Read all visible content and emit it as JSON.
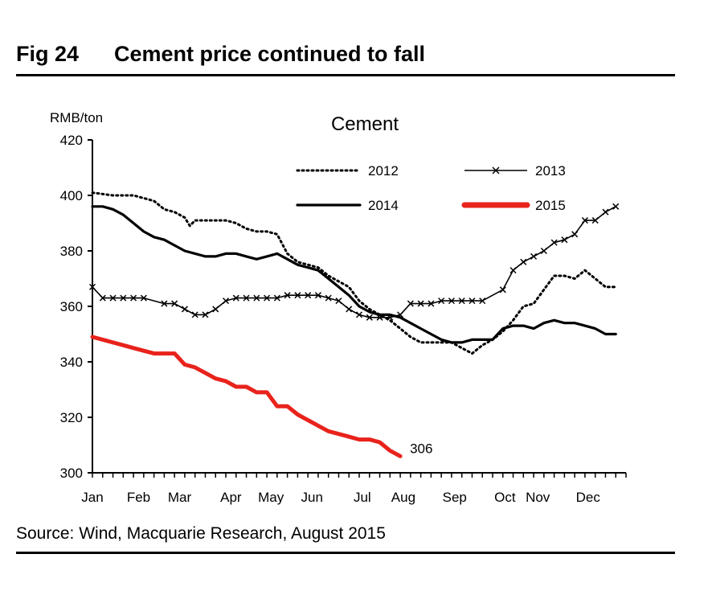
{
  "figure": {
    "number": "Fig 24",
    "title": "Cement price continued to fall",
    "source": "Source: Wind, Macquarie Research, August 2015"
  },
  "chart_data": {
    "type": "line",
    "title": "Cement",
    "ylabel": "RMB/ton",
    "xlabel": "",
    "ylim": [
      300,
      420
    ],
    "yticks": [
      300,
      320,
      340,
      360,
      380,
      400,
      420
    ],
    "x_unit": "week",
    "xlim": [
      0,
      52
    ],
    "x_ticks": [
      {
        "label": "Jan",
        "x": 0
      },
      {
        "label": "Feb",
        "x": 4.5
      },
      {
        "label": "Mar",
        "x": 8.5
      },
      {
        "label": "Apr",
        "x": 13.5
      },
      {
        "label": "May",
        "x": 17.4
      },
      {
        "label": "Jun",
        "x": 21.4
      },
      {
        "label": "Jul",
        "x": 26.3
      },
      {
        "label": "Aug",
        "x": 30.3
      },
      {
        "label": "Sep",
        "x": 35.3
      },
      {
        "label": "Oct",
        "x": 40.2
      },
      {
        "label": "Nov",
        "x": 43.4
      },
      {
        "label": "Dec",
        "x": 48.3
      }
    ],
    "grid": false,
    "legend": "top-right",
    "series": [
      {
        "name": "2012",
        "style": "dotted",
        "color": "#000000",
        "x": [
          0,
          2,
          4,
          6,
          7,
          8,
          9,
          9.5,
          10,
          11,
          13,
          14,
          15,
          16,
          17,
          18,
          19,
          20,
          22,
          23,
          24,
          25,
          26,
          27,
          28,
          29,
          30,
          31,
          32,
          33,
          34,
          35,
          36,
          37,
          38,
          39,
          40,
          41,
          42,
          43,
          44,
          45,
          46,
          47,
          48,
          49,
          50,
          51
        ],
        "values": [
          401,
          400,
          400,
          398,
          395,
          394,
          392,
          389,
          391,
          391,
          391,
          390,
          388,
          387,
          387,
          386,
          379,
          376,
          374,
          371,
          369,
          367,
          362,
          359,
          357,
          355,
          352,
          349,
          347,
          347,
          347,
          347,
          345,
          343,
          346,
          348,
          351,
          355,
          360,
          361,
          366,
          371,
          371,
          370,
          373,
          370,
          367,
          367
        ]
      },
      {
        "name": "2013",
        "style": "solid-x",
        "color": "#000000",
        "x": [
          0,
          1,
          2,
          3,
          4,
          5,
          7,
          8,
          9,
          10,
          11,
          12,
          13,
          14,
          15,
          16,
          17,
          18,
          19,
          20,
          21,
          22,
          23,
          24,
          25,
          26,
          27,
          28,
          29,
          30,
          31,
          32,
          33,
          34,
          35,
          36,
          37,
          38,
          40,
          41,
          42,
          43,
          44,
          45,
          46,
          47,
          48,
          49,
          50,
          51
        ],
        "values": [
          367,
          363,
          363,
          363,
          363,
          363,
          361,
          361,
          359,
          357,
          357,
          359,
          362,
          363,
          363,
          363,
          363,
          363,
          364,
          364,
          364,
          364,
          363,
          362,
          359,
          357,
          356,
          356,
          356,
          357,
          361,
          361,
          361,
          362,
          362,
          362,
          362,
          362,
          366,
          373,
          376,
          378,
          380,
          383,
          384,
          386,
          391,
          391,
          394,
          396
        ]
      },
      {
        "name": "2014",
        "style": "solid-thick",
        "color": "#000000",
        "x": [
          0,
          1,
          2,
          3,
          4,
          5,
          6,
          7,
          8,
          9,
          10,
          11,
          12,
          13,
          14,
          15,
          16,
          17,
          18,
          19,
          20,
          21,
          22,
          23,
          24,
          25,
          26,
          27,
          28,
          29,
          30,
          31,
          32,
          33,
          34,
          35,
          36,
          37,
          38,
          39,
          40,
          41,
          42,
          43,
          44,
          45,
          46,
          47,
          48,
          49,
          50,
          51
        ],
        "values": [
          396,
          396,
          395,
          393,
          390,
          387,
          385,
          384,
          382,
          380,
          379,
          378,
          378,
          379,
          379,
          378,
          377,
          378,
          379,
          377,
          375,
          374,
          373,
          370,
          367,
          364,
          360,
          358,
          357,
          357,
          356,
          354,
          352,
          350,
          348,
          347,
          347,
          348,
          348,
          348,
          352,
          353,
          353,
          352,
          354,
          355,
          354,
          354,
          353,
          352,
          350,
          350
        ]
      },
      {
        "name": "2015",
        "style": "solid-thick",
        "color": "#e8231c",
        "x": [
          0,
          1,
          2,
          3,
          4,
          5,
          6,
          7,
          8,
          9,
          10,
          11,
          12,
          13,
          14,
          15,
          16,
          17,
          18,
          19,
          20,
          21,
          22,
          23,
          24,
          25,
          26,
          27,
          28,
          29,
          30
        ],
        "values": [
          349,
          348,
          347,
          346,
          345,
          344,
          343,
          343,
          343,
          339,
          338,
          336,
          334,
          333,
          331,
          331,
          329,
          329,
          324,
          324,
          321,
          319,
          317,
          315,
          314,
          313,
          312,
          312,
          311,
          308,
          306
        ]
      }
    ],
    "annotations": [
      {
        "text": "306",
        "x": 30,
        "y": 306
      }
    ]
  }
}
